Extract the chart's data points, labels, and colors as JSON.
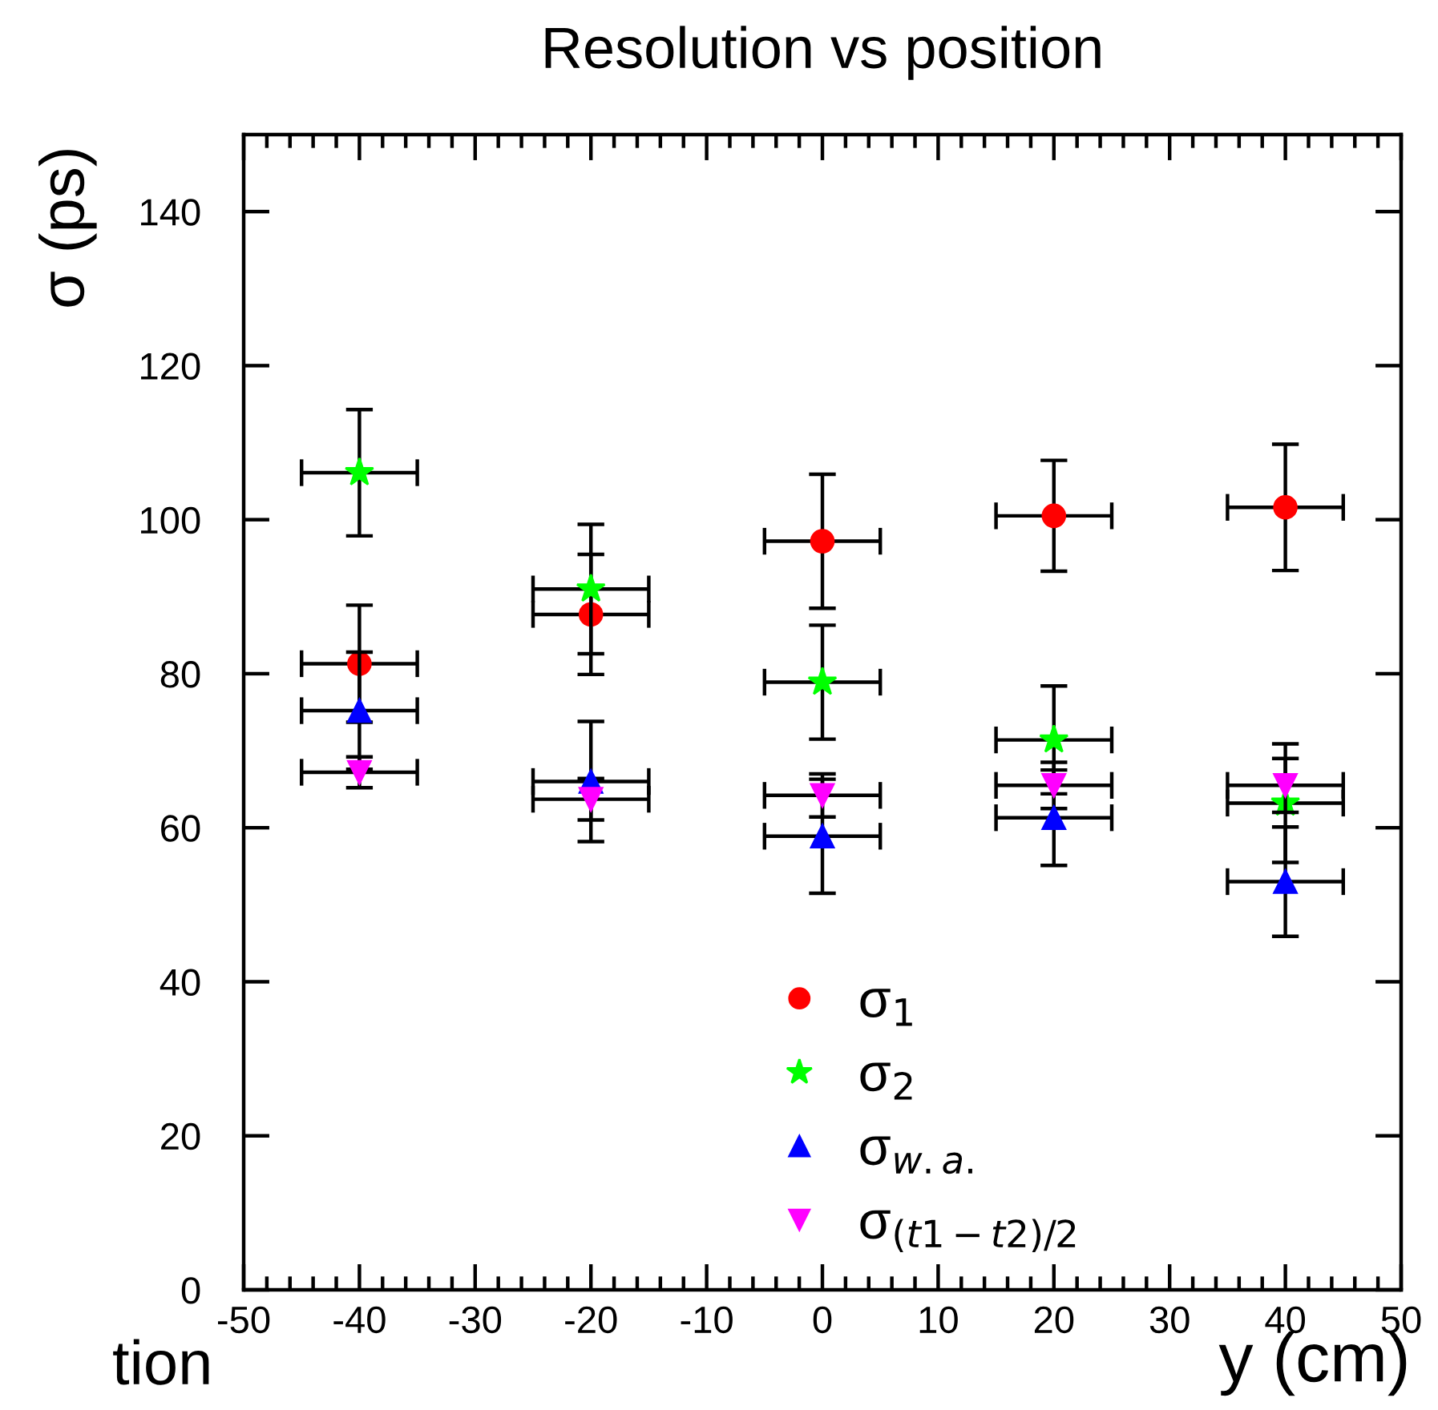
{
  "chart_data": {
    "type": "scatter",
    "title": "Resolution vs position",
    "xlabel": "y (cm)",
    "ylabel": "σ (ps)",
    "x": [
      -40,
      -20,
      0,
      20,
      40
    ],
    "xlim": [
      -50,
      50
    ],
    "xticks": [
      -50,
      -40,
      -30,
      -20,
      -10,
      0,
      10,
      20,
      30,
      40,
      50
    ],
    "ylim": [
      0,
      150
    ],
    "yticks": [
      0,
      20,
      40,
      60,
      80,
      100,
      120,
      140
    ],
    "legend": "bottom",
    "series": [
      {
        "name": "σ$_{1}$",
        "color": "#ff0000",
        "marker": "circle",
        "values": [
          81.3,
          87.7,
          97.2,
          100.5,
          101.6
        ],
        "errors": [
          7.6,
          7.8,
          8.7,
          7.2,
          8.2
        ],
        "xerrors": [
          5,
          5,
          5,
          5,
          5
        ]
      },
      {
        "name": "σ$_{2}$",
        "color": "#00ff00",
        "marker": "star",
        "values": [
          106.1,
          91.0,
          78.9,
          71.4,
          63.2
        ],
        "errors": [
          8.2,
          8.4,
          7.4,
          7.0,
          7.7
        ],
        "xerrors": [
          5,
          5,
          5,
          5,
          5
        ]
      },
      {
        "name": "σ$_{w.a.}$",
        "color": "#0000ff",
        "marker": "triangle",
        "values": [
          75.2,
          66.0,
          58.9,
          61.3,
          53.0
        ],
        "errors": [
          7.6,
          7.8,
          7.4,
          6.2,
          7.1
        ],
        "xerrors": [
          5,
          5,
          5,
          5,
          5
        ]
      },
      {
        "name": "σ$_{(t1−t2)/2}$",
        "color": "#ff00ff",
        "marker": "triangle_down",
        "values": [
          67.2,
          63.7,
          64.2,
          65.5,
          65.5
        ],
        "errors": [
          2.0,
          2.7,
          2.8,
          3.0,
          3.5
        ],
        "xerrors": [
          5,
          5,
          5,
          5,
          5
        ]
      }
    ],
    "annotations": [
      "tion"
    ]
  }
}
